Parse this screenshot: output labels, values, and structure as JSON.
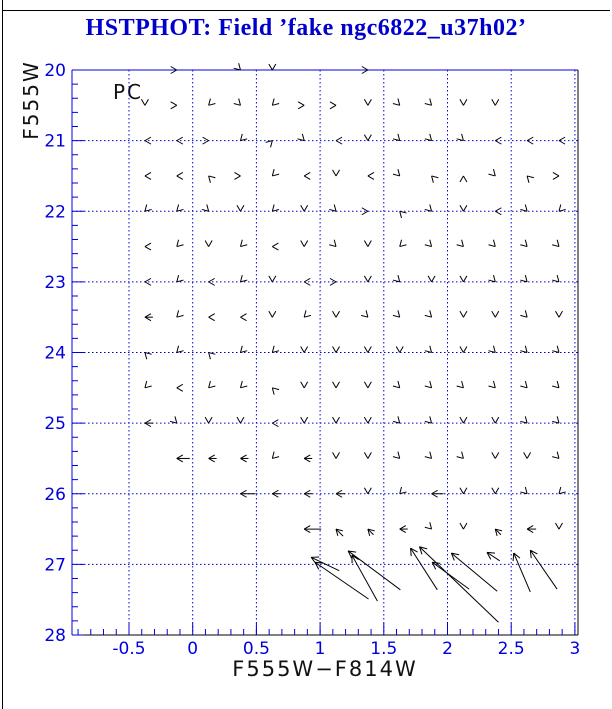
{
  "header": {
    "title": "HSTPHOT: Field ’fake ngc6822_u37h02’"
  },
  "colors": {
    "title_blue": "#0000cd",
    "axis_blue": "#0000dd",
    "grid_blue": "#0000dd",
    "tick_label_blue": "#0000dd",
    "arrow_black": "#000000",
    "frame_black": "#000000",
    "background": "#ffffff"
  },
  "chart_data": {
    "type": "scatter",
    "variant": "quiver-vector-field",
    "title": "HSTPHOT: Field ’fake ngc6822_u37h02’",
    "annotation": "PC",
    "xlabel": "F555W−F814W",
    "ylabel": "F555W",
    "xlim": [
      -0.97,
      3.03
    ],
    "ylim": [
      28,
      20
    ],
    "y_axis_inverted": true,
    "grid": "dotted blue lines at major ticks",
    "x_ticks": [
      -0.5,
      0,
      0.5,
      1,
      1.5,
      2,
      2.5,
      3
    ],
    "x_tick_labels": [
      "-0.5",
      "0",
      "0.5",
      "1",
      "1.5",
      "2",
      "2.5",
      "3"
    ],
    "x_minor_step": 0.1,
    "y_ticks": [
      20,
      21,
      22,
      23,
      24,
      25,
      26,
      27,
      28
    ],
    "y_tick_labels": [
      "20",
      "21",
      "22",
      "23",
      "24",
      "25",
      "26",
      "27",
      "28"
    ],
    "y_minor_step": 0.2,
    "vector_grid_note": "small arrows on grid: color every 0.25 mag-color from -0.375 to 2.875, magnitude every 0.5 from 20 to 26.5; entries are [color, direction, length_px]",
    "vector_rows": [
      {
        "m": 20.0,
        "a": [
          [
            -0.125,
            "E",
            6
          ],
          [
            0.375,
            "SE",
            6
          ],
          [
            0.625,
            "S",
            6
          ],
          [
            1.375,
            "E",
            6
          ]
        ]
      },
      {
        "m": 20.5,
        "a": [
          [
            -0.375,
            "S",
            6
          ],
          [
            -0.125,
            "E",
            6
          ],
          [
            0.125,
            "SW",
            6
          ],
          [
            0.375,
            "SE",
            6
          ],
          [
            0.625,
            "SW",
            6
          ],
          [
            0.875,
            "E",
            6
          ],
          [
            1.125,
            "E",
            6
          ],
          [
            1.375,
            "S",
            6
          ],
          [
            1.625,
            "SE",
            6
          ],
          [
            1.875,
            "SE",
            6
          ],
          [
            2.125,
            "S",
            6
          ],
          [
            2.375,
            "S",
            6
          ]
        ]
      },
      {
        "m": 21.0,
        "a": [
          [
            -0.375,
            "W",
            6
          ],
          [
            -0.125,
            "W",
            6
          ],
          [
            0.125,
            "E",
            6
          ],
          [
            0.375,
            "SW",
            6
          ],
          [
            0.625,
            "NE",
            6
          ],
          [
            0.875,
            "SE",
            6
          ],
          [
            1.125,
            "W",
            6
          ],
          [
            1.375,
            "S",
            6
          ],
          [
            1.625,
            "SE",
            6
          ],
          [
            1.875,
            "SE",
            6
          ],
          [
            2.125,
            "SE",
            6
          ],
          [
            2.375,
            "W",
            6
          ],
          [
            2.625,
            "W",
            6
          ],
          [
            2.875,
            "W",
            6
          ]
        ]
      },
      {
        "m": 21.5,
        "a": [
          [
            -0.375,
            "W",
            6
          ],
          [
            -0.125,
            "W",
            6
          ],
          [
            0.125,
            "NW",
            6
          ],
          [
            0.375,
            "E",
            6
          ],
          [
            0.625,
            "SW",
            6
          ],
          [
            0.875,
            "W",
            6
          ],
          [
            1.125,
            "S",
            6
          ],
          [
            1.375,
            "W",
            6
          ],
          [
            1.625,
            "SE",
            6
          ],
          [
            1.875,
            "NW",
            6
          ],
          [
            2.125,
            "N",
            6
          ],
          [
            2.375,
            "SE",
            6
          ],
          [
            2.625,
            "NW",
            6
          ],
          [
            2.875,
            "E",
            6
          ]
        ]
      },
      {
        "m": 22.0,
        "a": [
          [
            -0.375,
            "SW",
            6
          ],
          [
            -0.125,
            "SW",
            6
          ],
          [
            0.125,
            "SE",
            6
          ],
          [
            0.375,
            "S",
            6
          ],
          [
            0.625,
            "SW",
            7
          ],
          [
            0.875,
            "S",
            6
          ],
          [
            1.125,
            "SE",
            6
          ],
          [
            1.375,
            "E",
            6
          ],
          [
            1.625,
            "NW",
            6
          ],
          [
            1.875,
            "SE",
            6
          ],
          [
            2.125,
            "S",
            6
          ],
          [
            2.375,
            "W",
            6
          ],
          [
            2.625,
            "SE",
            6
          ],
          [
            2.875,
            "SW",
            6
          ]
        ]
      },
      {
        "m": 22.5,
        "a": [
          [
            -0.375,
            "W",
            6
          ],
          [
            -0.125,
            "SW",
            6
          ],
          [
            0.125,
            "S",
            6
          ],
          [
            0.375,
            "SW",
            6
          ],
          [
            0.625,
            "W",
            6
          ],
          [
            0.875,
            "S",
            6
          ],
          [
            1.125,
            "SE",
            6
          ],
          [
            1.375,
            "S",
            6
          ],
          [
            1.625,
            "SW",
            6
          ],
          [
            1.875,
            "SE",
            6
          ],
          [
            2.125,
            "SE",
            6
          ],
          [
            2.375,
            "SE",
            6
          ],
          [
            2.625,
            "SE",
            6
          ],
          [
            2.875,
            "SE",
            6
          ]
        ]
      },
      {
        "m": 23.0,
        "a": [
          [
            -0.375,
            "W",
            6
          ],
          [
            -0.125,
            "SW",
            6
          ],
          [
            0.125,
            "W",
            6
          ],
          [
            0.375,
            "SW",
            6
          ],
          [
            0.625,
            "S",
            6
          ],
          [
            0.875,
            "W",
            6
          ],
          [
            1.125,
            "E",
            6
          ],
          [
            1.375,
            "S",
            6
          ],
          [
            1.625,
            "SE",
            6
          ],
          [
            1.875,
            "S",
            6
          ],
          [
            2.125,
            "S",
            6
          ],
          [
            2.375,
            "SE",
            6
          ],
          [
            2.625,
            "SE",
            6
          ],
          [
            2.875,
            "SE",
            6
          ]
        ]
      },
      {
        "m": 23.5,
        "a": [
          [
            -0.375,
            "W",
            8
          ],
          [
            -0.125,
            "SW",
            6
          ],
          [
            0.125,
            "W",
            6
          ],
          [
            0.375,
            "W",
            6
          ],
          [
            0.625,
            "S",
            6
          ],
          [
            0.875,
            "SW",
            6
          ],
          [
            1.125,
            "S",
            6
          ],
          [
            1.375,
            "SE",
            6
          ],
          [
            1.625,
            "SE",
            6
          ],
          [
            1.875,
            "SE",
            6
          ],
          [
            2.125,
            "S",
            6
          ],
          [
            2.375,
            "S",
            6
          ],
          [
            2.625,
            "SE",
            6
          ],
          [
            2.875,
            "S",
            6
          ]
        ]
      },
      {
        "m": 24.0,
        "a": [
          [
            -0.375,
            "NW",
            6
          ],
          [
            -0.125,
            "SW",
            6
          ],
          [
            0.125,
            "NW",
            6
          ],
          [
            0.375,
            "SW",
            6
          ],
          [
            0.625,
            "SW",
            6
          ],
          [
            0.875,
            "S",
            6
          ],
          [
            1.125,
            "S",
            6
          ],
          [
            1.375,
            "S",
            6
          ],
          [
            1.625,
            "S",
            6
          ],
          [
            1.875,
            "SE",
            6
          ],
          [
            2.125,
            "S",
            6
          ],
          [
            2.375,
            "SE",
            6
          ],
          [
            2.625,
            "SE",
            6
          ],
          [
            2.875,
            "SE",
            6
          ]
        ]
      },
      {
        "m": 24.5,
        "a": [
          [
            -0.375,
            "SW",
            6
          ],
          [
            -0.125,
            "W",
            7
          ],
          [
            0.125,
            "SW",
            6
          ],
          [
            0.375,
            "SW",
            6
          ],
          [
            0.625,
            "NW",
            6
          ],
          [
            0.875,
            "S",
            6
          ],
          [
            1.125,
            "S",
            6
          ],
          [
            1.375,
            "S",
            6
          ],
          [
            1.625,
            "SE",
            6
          ],
          [
            1.875,
            "SE",
            6
          ],
          [
            2.125,
            "SE",
            6
          ],
          [
            2.375,
            "SE",
            6
          ],
          [
            2.625,
            "SE",
            6
          ],
          [
            2.875,
            "SE",
            6
          ]
        ]
      },
      {
        "m": 25.0,
        "a": [
          [
            -0.375,
            "W",
            8
          ],
          [
            -0.125,
            "SE",
            6
          ],
          [
            0.125,
            "S",
            6
          ],
          [
            0.375,
            "S",
            6
          ],
          [
            0.625,
            "W",
            7
          ],
          [
            0.875,
            "S",
            6
          ],
          [
            1.125,
            "S",
            6
          ],
          [
            1.375,
            "S",
            6
          ],
          [
            1.625,
            "SE",
            6
          ],
          [
            1.875,
            "SE",
            6
          ],
          [
            2.125,
            "S",
            6
          ],
          [
            2.375,
            "S",
            6
          ],
          [
            2.625,
            "SE",
            6
          ],
          [
            2.875,
            "SE",
            6
          ]
        ]
      },
      {
        "m": 25.5,
        "a": [
          [
            -0.125,
            "W",
            13
          ],
          [
            0.125,
            "W",
            8
          ],
          [
            0.375,
            "W",
            8
          ],
          [
            0.625,
            "SW",
            7
          ],
          [
            0.875,
            "W",
            8
          ],
          [
            1.125,
            "S",
            6
          ],
          [
            1.375,
            "S",
            6
          ],
          [
            1.625,
            "SE",
            6
          ],
          [
            1.875,
            "SE",
            6
          ],
          [
            2.125,
            "SE",
            6
          ],
          [
            2.375,
            "S",
            6
          ],
          [
            2.625,
            "S",
            6
          ],
          [
            2.875,
            "SE",
            6
          ]
        ]
      },
      {
        "m": 26.0,
        "a": [
          [
            0.375,
            "W",
            15
          ],
          [
            0.625,
            "W",
            8
          ],
          [
            0.875,
            "W",
            8
          ],
          [
            1.125,
            "W",
            9
          ],
          [
            1.375,
            "S",
            6
          ],
          [
            1.625,
            "SW",
            7
          ],
          [
            1.875,
            "W",
            12
          ],
          [
            2.125,
            "S",
            6
          ],
          [
            2.375,
            "S",
            6
          ],
          [
            2.625,
            "SE",
            6
          ],
          [
            2.875,
            "SW",
            7
          ]
        ]
      },
      {
        "m": 26.5,
        "a": [
          [
            0.875,
            "W",
            17
          ],
          [
            1.125,
            "NW",
            10
          ],
          [
            1.375,
            "NW",
            8
          ],
          [
            1.625,
            "W",
            8
          ],
          [
            1.875,
            "SE",
            6
          ],
          [
            2.125,
            "S",
            7
          ],
          [
            2.375,
            "NW",
            8
          ],
          [
            2.625,
            "W",
            9
          ],
          [
            2.875,
            "S",
            7
          ]
        ]
      }
    ],
    "long_arrows": [
      {
        "head": [
          0.93,
          26.9
        ],
        "tail": [
          1.15,
          27.09
        ]
      },
      {
        "head": [
          0.96,
          26.97
        ],
        "tail": [
          1.38,
          27.49
        ]
      },
      {
        "head": [
          1.22,
          26.81
        ],
        "tail": [
          1.63,
          27.36
        ]
      },
      {
        "head": [
          1.25,
          26.87
        ],
        "tail": [
          1.45,
          27.52
        ]
      },
      {
        "head": [
          1.71,
          26.77
        ],
        "tail": [
          1.92,
          27.36
        ]
      },
      {
        "head": [
          1.78,
          26.75
        ],
        "tail": [
          2.4,
          27.82
        ]
      },
      {
        "head": [
          1.88,
          26.97
        ],
        "tail": [
          2.17,
          27.35
        ]
      },
      {
        "head": [
          2.03,
          26.84
        ],
        "tail": [
          2.39,
          27.38
        ]
      },
      {
        "head": [
          2.31,
          26.83
        ],
        "tail": [
          2.41,
          26.95
        ]
      },
      {
        "head": [
          2.52,
          26.84
        ],
        "tail": [
          2.65,
          27.39
        ]
      },
      {
        "head": [
          2.65,
          26.8
        ],
        "tail": [
          2.86,
          27.35
        ]
      }
    ]
  }
}
